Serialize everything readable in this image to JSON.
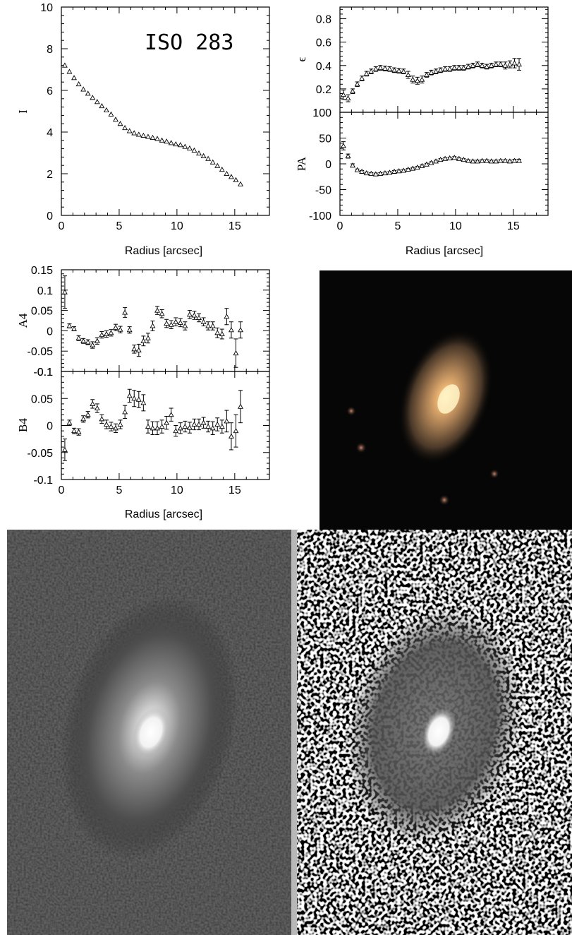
{
  "figure": {
    "object_label": "ISO 283",
    "xlabel": "Radius [arcsec]"
  },
  "chart_data": [
    {
      "type": "scatter",
      "id": "intensity",
      "ylabel": "I",
      "xlim": [
        0,
        18
      ],
      "ylim": [
        0,
        10
      ],
      "xticks": [
        0,
        5,
        10,
        15
      ],
      "yticks": [
        0,
        2,
        4,
        6,
        8,
        10
      ],
      "xticklabels": [
        "0",
        "5",
        "10",
        "15"
      ],
      "yticklabels": [
        "0",
        "2",
        "4",
        "6",
        "8",
        "10"
      ],
      "show_xticklabels": true,
      "x": [
        0.3,
        0.7,
        1.1,
        1.5,
        1.9,
        2.3,
        2.7,
        3.1,
        3.5,
        3.9,
        4.3,
        4.7,
        5.1,
        5.5,
        5.9,
        6.3,
        6.7,
        7.1,
        7.5,
        7.9,
        8.3,
        8.7,
        9.1,
        9.5,
        9.9,
        10.3,
        10.7,
        11.1,
        11.5,
        11.9,
        12.3,
        12.7,
        13.1,
        13.5,
        13.9,
        14.3,
        14.7,
        15.1,
        15.5
      ],
      "y": [
        7.2,
        6.9,
        6.6,
        6.3,
        6.05,
        5.85,
        5.65,
        5.45,
        5.25,
        5.05,
        4.85,
        4.6,
        4.4,
        4.2,
        4.05,
        3.95,
        3.88,
        3.83,
        3.78,
        3.73,
        3.68,
        3.6,
        3.55,
        3.48,
        3.42,
        3.38,
        3.3,
        3.22,
        3.12,
        2.98,
        2.85,
        2.72,
        2.55,
        2.38,
        2.2,
        2.0,
        1.85,
        1.7,
        1.5
      ],
      "yerr": []
    },
    {
      "type": "scatter",
      "id": "ellipticity",
      "ylabel": "ϵ",
      "xlim": [
        0,
        18
      ],
      "ylim": [
        0,
        0.9
      ],
      "xticks": [
        0,
        5,
        10,
        15
      ],
      "yticks": [
        0.2,
        0.4,
        0.6,
        0.8
      ],
      "xticklabels": [],
      "yticklabels": [
        "0.2",
        "0.4",
        "0.6",
        "0.8"
      ],
      "show_xticklabels": false,
      "x": [
        0.3,
        0.7,
        1.1,
        1.5,
        1.9,
        2.3,
        2.7,
        3.1,
        3.5,
        3.9,
        4.3,
        4.7,
        5.1,
        5.5,
        5.9,
        6.3,
        6.7,
        7.1,
        7.5,
        7.9,
        8.3,
        8.7,
        9.1,
        9.5,
        9.9,
        10.3,
        10.7,
        11.1,
        11.5,
        11.9,
        12.3,
        12.7,
        13.1,
        13.5,
        13.9,
        14.3,
        14.7,
        15.1,
        15.5
      ],
      "y": [
        0.15,
        0.12,
        0.18,
        0.24,
        0.29,
        0.33,
        0.35,
        0.37,
        0.38,
        0.375,
        0.37,
        0.36,
        0.355,
        0.35,
        0.32,
        0.28,
        0.27,
        0.28,
        0.32,
        0.34,
        0.35,
        0.36,
        0.37,
        0.37,
        0.38,
        0.38,
        0.38,
        0.39,
        0.4,
        0.41,
        0.4,
        0.39,
        0.4,
        0.41,
        0.41,
        0.4,
        0.41,
        0.42,
        0.41
      ],
      "yerr": [
        0.04,
        0.03,
        0.02,
        0.02,
        0.02,
        0.02,
        0.02,
        0.02,
        0.02,
        0.02,
        0.02,
        0.02,
        0.02,
        0.02,
        0.03,
        0.03,
        0.03,
        0.03,
        0.02,
        0.02,
        0.02,
        0.02,
        0.02,
        0.02,
        0.02,
        0.02,
        0.02,
        0.02,
        0.02,
        0.02,
        0.02,
        0.02,
        0.02,
        0.02,
        0.02,
        0.03,
        0.03,
        0.04,
        0.05
      ]
    },
    {
      "type": "scatter",
      "id": "position-angle",
      "ylabel": "PA",
      "xlim": [
        0,
        18
      ],
      "ylim": [
        -100,
        100
      ],
      "xticks": [
        0,
        5,
        10,
        15
      ],
      "yticks": [
        -100,
        -50,
        0,
        50,
        100
      ],
      "xticklabels": [
        "0",
        "5",
        "10",
        "15"
      ],
      "yticklabels": [
        "-100",
        "-50",
        "0",
        "50",
        "100"
      ],
      "show_xticklabels": true,
      "x": [
        0.3,
        0.7,
        1.1,
        1.5,
        1.9,
        2.3,
        2.7,
        3.1,
        3.5,
        3.9,
        4.3,
        4.7,
        5.1,
        5.5,
        5.9,
        6.3,
        6.7,
        7.1,
        7.5,
        7.9,
        8.3,
        8.7,
        9.1,
        9.5,
        9.9,
        10.3,
        10.7,
        11.1,
        11.5,
        11.9,
        12.3,
        12.7,
        13.1,
        13.5,
        13.9,
        14.3,
        14.7,
        15.1,
        15.5
      ],
      "y": [
        35,
        15,
        -3,
        -12,
        -15,
        -18,
        -19,
        -20,
        -19,
        -18,
        -17,
        -15,
        -14,
        -13,
        -11,
        -9,
        -7,
        -4,
        -1,
        2,
        5,
        8,
        10,
        11,
        12,
        10,
        8,
        6,
        5,
        5,
        6,
        6,
        5,
        5,
        6,
        6,
        5,
        6,
        6
      ],
      "yerr": [
        8,
        4,
        3,
        2,
        2,
        2,
        2,
        2,
        2,
        2,
        2,
        2,
        2,
        2,
        2,
        2,
        2,
        2,
        2,
        2,
        2,
        2,
        2,
        2,
        2,
        2,
        2,
        2,
        2,
        2,
        2,
        2,
        2,
        2,
        2,
        2,
        2,
        3,
        3
      ]
    },
    {
      "type": "scatter",
      "id": "a4",
      "ylabel": "A4",
      "xlim": [
        0,
        18
      ],
      "ylim": [
        -0.1,
        0.15
      ],
      "xticks": [
        0,
        5,
        10,
        15
      ],
      "yticks": [
        -0.1,
        -0.05,
        0,
        0.05,
        0.1,
        0.15
      ],
      "xticklabels": [],
      "yticklabels": [
        "-0.1",
        "-0.05",
        "0",
        "0.05",
        "0.1",
        "0.15"
      ],
      "show_xticklabels": false,
      "x": [
        0.3,
        0.7,
        1.1,
        1.5,
        1.9,
        2.3,
        2.7,
        3.1,
        3.5,
        3.9,
        4.3,
        4.7,
        5.1,
        5.5,
        5.9,
        6.3,
        6.7,
        7.1,
        7.5,
        7.9,
        8.3,
        8.7,
        9.1,
        9.5,
        9.9,
        10.3,
        10.7,
        11.1,
        11.5,
        11.9,
        12.3,
        12.7,
        13.1,
        13.5,
        13.9,
        14.3,
        14.7,
        15.1,
        15.5
      ],
      "y": [
        0.095,
        0.012,
        0.005,
        -0.018,
        -0.025,
        -0.028,
        -0.035,
        -0.025,
        -0.01,
        -0.008,
        -0.005,
        0.008,
        0.003,
        0.045,
        0.002,
        -0.045,
        -0.048,
        -0.025,
        -0.018,
        0.012,
        0.05,
        0.042,
        0.018,
        0.015,
        0.022,
        0.02,
        0.012,
        0.04,
        0.038,
        0.032,
        0.022,
        0.012,
        0.012,
        -0.005,
        -0.008,
        0.035,
        0.002,
        -0.055,
        0.002
      ],
      "yerr": [
        0.04,
        0.005,
        0.005,
        0.006,
        0.006,
        0.006,
        0.008,
        0.008,
        0.008,
        0.008,
        0.008,
        0.008,
        0.008,
        0.012,
        0.008,
        0.01,
        0.015,
        0.012,
        0.012,
        0.012,
        0.01,
        0.01,
        0.01,
        0.01,
        0.01,
        0.01,
        0.01,
        0.01,
        0.01,
        0.01,
        0.01,
        0.01,
        0.01,
        0.012,
        0.012,
        0.02,
        0.02,
        0.035,
        0.02
      ]
    },
    {
      "type": "scatter",
      "id": "b4",
      "ylabel": "B4",
      "xlim": [
        0,
        18
      ],
      "ylim": [
        -0.1,
        0.1
      ],
      "xticks": [
        0,
        5,
        10,
        15
      ],
      "yticks": [
        -0.1,
        -0.05,
        0,
        0.05,
        0.1
      ],
      "xticklabels": [
        "0",
        "5",
        "10",
        "15"
      ],
      "yticklabels": [
        "-0.1",
        "-0.05",
        "0",
        "0.05",
        "0.1"
      ],
      "show_xticklabels": true,
      "x": [
        0.3,
        0.7,
        1.1,
        1.5,
        1.9,
        2.3,
        2.7,
        3.1,
        3.5,
        3.9,
        4.3,
        4.7,
        5.1,
        5.5,
        5.9,
        6.3,
        6.7,
        7.1,
        7.5,
        7.9,
        8.3,
        8.7,
        9.1,
        9.5,
        9.9,
        10.3,
        10.7,
        11.1,
        11.5,
        11.9,
        12.3,
        12.7,
        13.1,
        13.5,
        13.9,
        14.3,
        14.7,
        15.1,
        15.5
      ],
      "y": [
        -0.045,
        0.005,
        -0.01,
        -0.012,
        0.012,
        0.02,
        0.04,
        0.032,
        0.012,
        0.002,
        -0.002,
        -0.005,
        0.002,
        0.025,
        0.055,
        0.05,
        0.048,
        0.042,
        -0.002,
        -0.005,
        -0.005,
        -0.002,
        0.005,
        0.02,
        -0.01,
        -0.005,
        -0.002,
        -0.004,
        0.002,
        0.002,
        0.005,
        -0.002,
        -0.005,
        0.002,
        -0.002,
        0.008,
        -0.02,
        -0.01,
        0.035
      ],
      "yerr": [
        0.02,
        0.005,
        0.005,
        0.006,
        0.006,
        0.006,
        0.008,
        0.008,
        0.008,
        0.008,
        0.008,
        0.008,
        0.008,
        0.012,
        0.012,
        0.015,
        0.015,
        0.015,
        0.012,
        0.012,
        0.012,
        0.012,
        0.012,
        0.012,
        0.01,
        0.01,
        0.01,
        0.01,
        0.01,
        0.01,
        0.01,
        0.01,
        0.012,
        0.012,
        0.012,
        0.02,
        0.025,
        0.03,
        0.03
      ]
    }
  ]
}
